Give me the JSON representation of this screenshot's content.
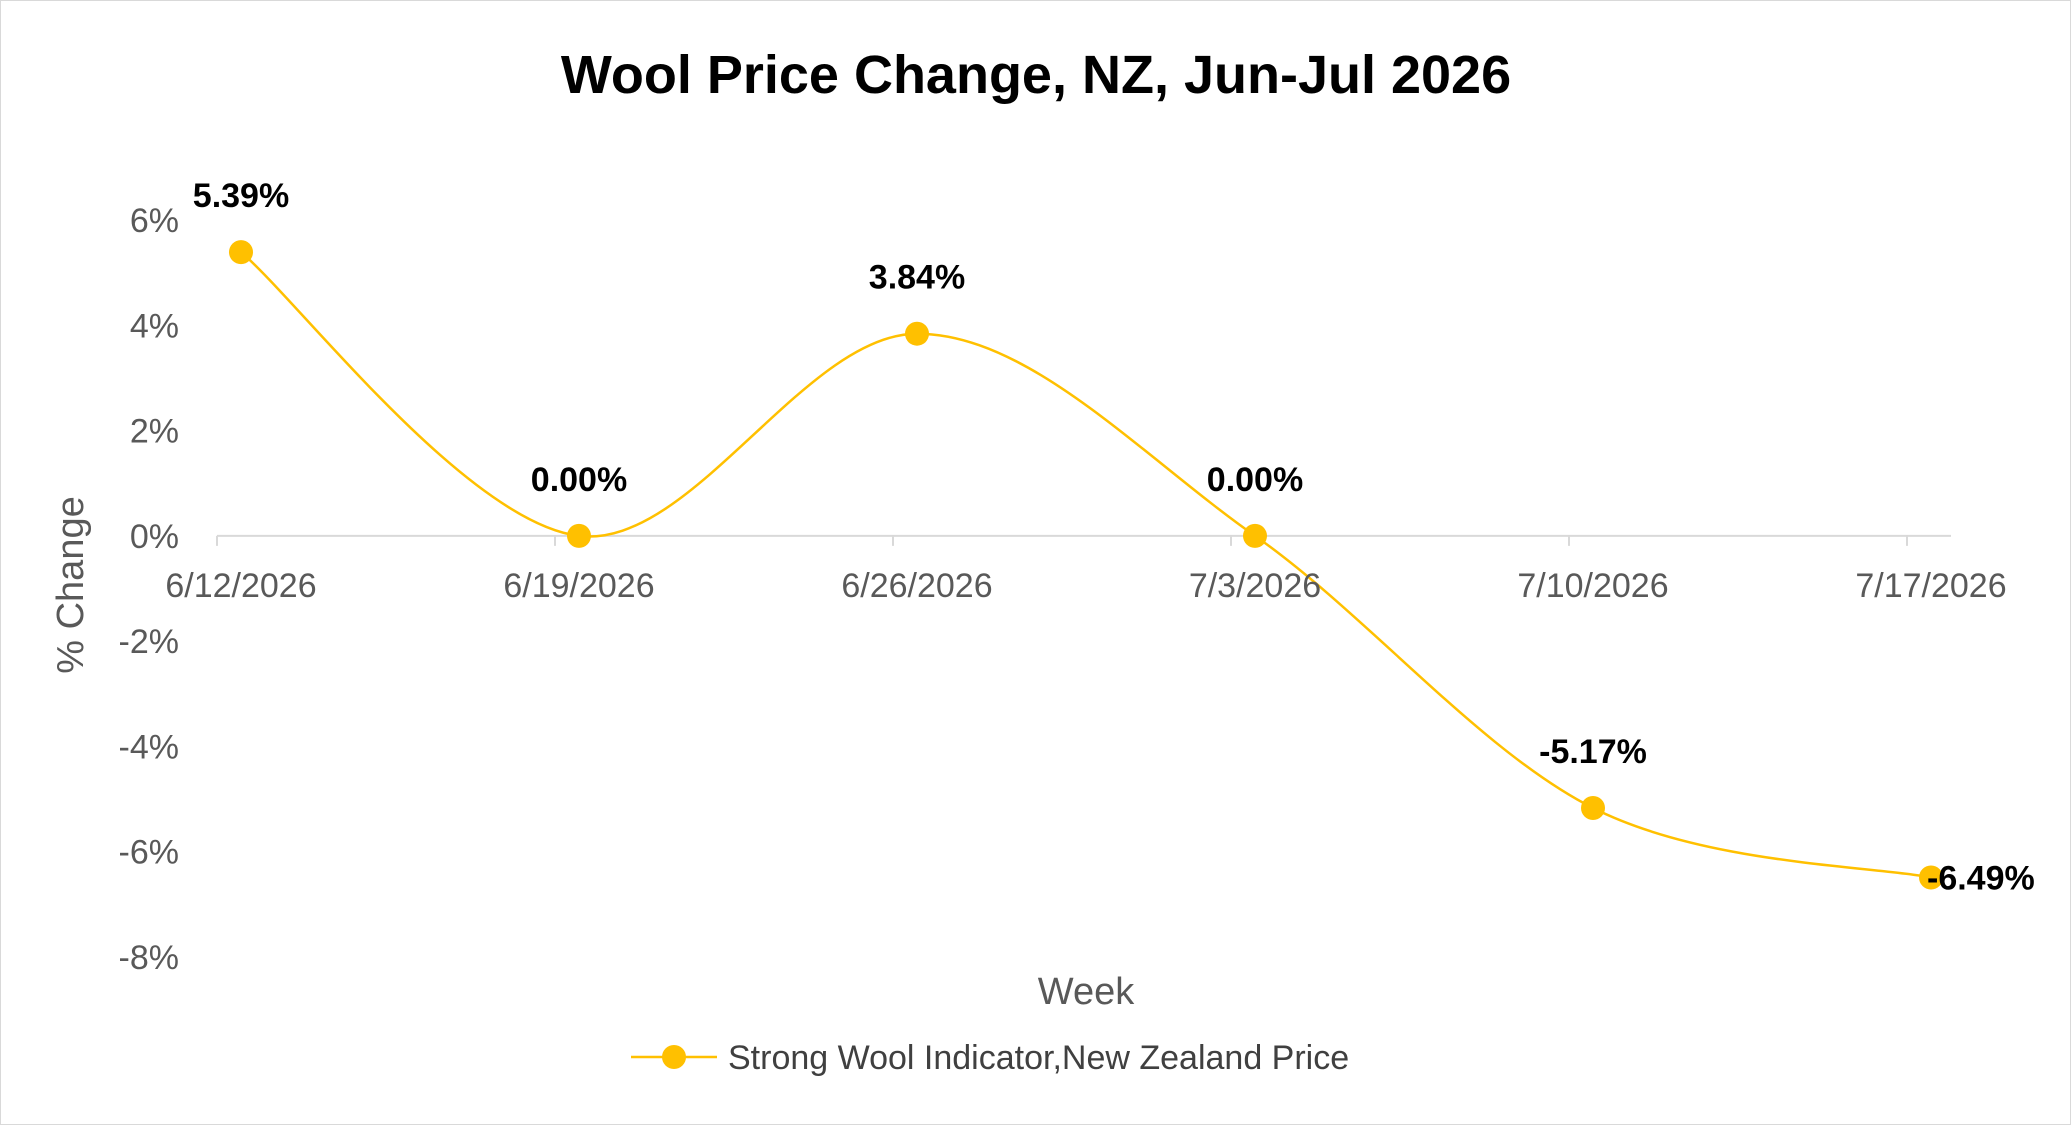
{
  "chart_data": {
    "type": "line",
    "title": "Wool Price Change, NZ, Jun-Jul 2026",
    "xlabel": "Week",
    "ylabel": "% Change",
    "categories": [
      "6/12/2026",
      "6/19/2026",
      "6/26/2026",
      "7/3/2026",
      "7/10/2026",
      "7/17/2026"
    ],
    "series": [
      {
        "name": "Strong Wool Indicator,New Zealand Price",
        "values": [
          5.39,
          0.0,
          3.84,
          0.0,
          -5.17,
          -6.49
        ],
        "data_labels": [
          "5.39%",
          "0.00%",
          "3.84%",
          "0.00%",
          "-5.17%",
          "-6.49%"
        ],
        "color": "#FFC000"
      }
    ],
    "y_ticks": [
      "6%",
      "4%",
      "2%",
      "0%",
      "-2%",
      "-4%",
      "-6%",
      "-8%"
    ],
    "y_tick_values": [
      6,
      4,
      2,
      0,
      -2,
      -4,
      -6,
      -8
    ],
    "ylim": [
      -8,
      6
    ],
    "grid": false,
    "smooth": true,
    "legend_position": "bottom"
  }
}
